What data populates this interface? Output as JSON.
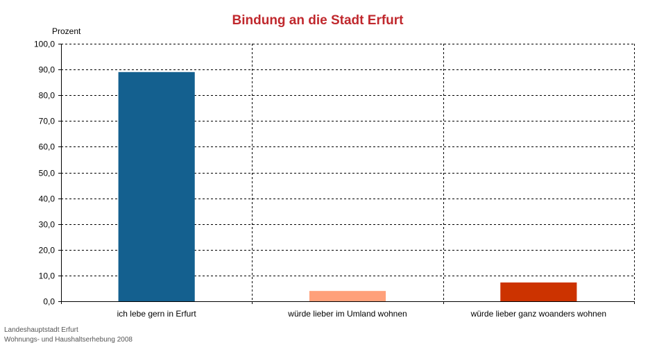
{
  "chart_data": {
    "type": "bar",
    "title": "Bindung an die Stadt Erfurt",
    "ylabel": "Prozent",
    "xlabel": "",
    "categories": [
      "ich lebe gern in Erfurt",
      "würde lieber im Umland wohnen",
      "würde lieber ganz woanders wohnen"
    ],
    "values": [
      89.0,
      4.0,
      7.3
    ],
    "bar_colors": [
      "#14608f",
      "#ffa07a",
      "#cc3300"
    ],
    "ylim": [
      0,
      100
    ],
    "yticks": [
      0,
      10,
      20,
      30,
      40,
      50,
      60,
      70,
      80,
      90,
      100
    ],
    "ytick_labels": [
      "0,0",
      "10,0",
      "20,0",
      "30,0",
      "40,0",
      "50,0",
      "60,0",
      "70,0",
      "80,0",
      "90,0",
      "100,0"
    ],
    "grid": "dashed",
    "legend": "none"
  },
  "source": {
    "line1": "Landeshauptstadt Erfurt",
    "line2": "Wohnungs- und Haushaltserhebung 2008"
  },
  "colors": {
    "title": "#c0282d",
    "grid": "#000000",
    "text": "#000000",
    "source": "#555555"
  }
}
